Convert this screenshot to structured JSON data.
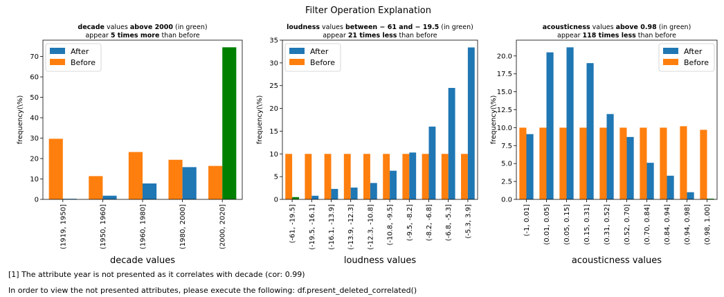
{
  "figure_title": "Filter Operation Explanation",
  "colors": {
    "after": "#1f77b4",
    "before": "#ff7f0e",
    "highlight": "#008000"
  },
  "chart_data": [
    {
      "type": "bar",
      "subtitle_parts": [
        [
          {
            "t": "decade",
            "b": true
          },
          {
            "t": " values ",
            "b": false
          },
          {
            "t": "above 2000",
            "b": true
          },
          {
            "t": " (in green)",
            "b": false
          }
        ],
        [
          {
            "t": "appear ",
            "b": false
          },
          {
            "t": "5 times more",
            "b": true
          },
          {
            "t": " than before",
            "b": false
          }
        ]
      ],
      "xlabel": "decade values",
      "ylabel": "frequency(\\%)",
      "categories": [
        "(1919, 1950]",
        "(1950, 1960]",
        "(1960, 1980]",
        "(1980, 2000]",
        "(2000, 2020]"
      ],
      "series": [
        {
          "name": "After",
          "values": [
            0.3,
            1.8,
            7.8,
            15.8,
            74.5
          ]
        },
        {
          "name": "Before",
          "values": [
            29.7,
            11.4,
            23.2,
            19.4,
            16.4
          ]
        }
      ],
      "highlight_index": 4,
      "ylim": [
        0,
        78
      ],
      "yticks": [
        "0",
        "10",
        "20",
        "30",
        "40",
        "50",
        "60",
        "70"
      ],
      "ytick_values": [
        0,
        10,
        20,
        30,
        40,
        50,
        60,
        70
      ],
      "legend": "top-left"
    },
    {
      "type": "bar",
      "subtitle_parts": [
        [
          {
            "t": "loudness",
            "b": true
          },
          {
            "t": " values ",
            "b": false
          },
          {
            "t": "between  − 61 and  − 19.5",
            "b": true
          },
          {
            "t": " (in green)",
            "b": false
          }
        ],
        [
          {
            "t": "appear ",
            "b": false
          },
          {
            "t": "21 times less",
            "b": true
          },
          {
            "t": " than before",
            "b": false
          }
        ]
      ],
      "xlabel": "loudness values",
      "ylabel": "frequency(\\%)",
      "categories": [
        "(-61, -19.5]",
        "(-19.5, -16.1]",
        "(-16.1, -13.9]",
        "(-13.9, -12.3]",
        "(-12.3, -10.8]",
        "(-10.8, -9.5]",
        "(-9.5, -8.2]",
        "(-8.2, -6.8]",
        "(-6.8, -5.3]",
        "(-5.3, 3.9]"
      ],
      "series": [
        {
          "name": "After",
          "values": [
            0.5,
            0.8,
            2.3,
            2.6,
            3.6,
            6.3,
            10.3,
            16.0,
            24.5,
            33.4
          ]
        },
        {
          "name": "Before",
          "values": [
            10.0,
            10.0,
            10.0,
            10.0,
            10.0,
            10.0,
            10.0,
            10.0,
            10.0,
            10.0
          ]
        }
      ],
      "highlight_index": 0,
      "ylim": [
        0,
        35
      ],
      "yticks": [
        "0",
        "5",
        "10",
        "15",
        "20",
        "25",
        "30",
        "35"
      ],
      "ytick_values": [
        0,
        5,
        10,
        15,
        20,
        25,
        30,
        35
      ],
      "legend": "top-left"
    },
    {
      "type": "bar",
      "subtitle_parts": [
        [
          {
            "t": "acousticness",
            "b": true
          },
          {
            "t": " values ",
            "b": false
          },
          {
            "t": "above 0.98",
            "b": true
          },
          {
            "t": " (in green)",
            "b": false
          }
        ],
        [
          {
            "t": "appear ",
            "b": false
          },
          {
            "t": "118 times less",
            "b": true
          },
          {
            "t": " than before",
            "b": false
          }
        ]
      ],
      "xlabel": "acousticness values",
      "ylabel": "frequency(\\%)",
      "categories": [
        "(-1, 0.01]",
        "(0.01, 0.05]",
        "(0.05, 0.15]",
        "(0.15, 0.31]",
        "(0.31, 0.52]",
        "(0.52, 0.70]",
        "(0.70, 0.84]",
        "(0.84, 0.94]",
        "(0.94, 0.98]",
        "(0.98, 1.00]"
      ],
      "series": [
        {
          "name": "After",
          "values": [
            9.1,
            20.5,
            21.2,
            19.0,
            11.9,
            8.7,
            5.1,
            3.3,
            1.0,
            0.1
          ]
        },
        {
          "name": "Before",
          "values": [
            10.0,
            10.0,
            10.0,
            10.0,
            10.0,
            10.0,
            10.0,
            10.0,
            10.2,
            9.7
          ]
        }
      ],
      "highlight_index": 9,
      "ylim": [
        0,
        22.2
      ],
      "yticks": [
        "0.0",
        "2.5",
        "5.0",
        "7.5",
        "10.0",
        "12.5",
        "15.0",
        "17.5",
        "20.0"
      ],
      "ytick_values": [
        0,
        2.5,
        5,
        7.5,
        10,
        12.5,
        15,
        17.5,
        20
      ],
      "legend": "top-right"
    }
  ],
  "footnotes": [
    "[1] The attribute year is not presented as it correlates with decade (cor: 0.99)",
    "In order to view the not presented attributes, please execute the following: df.present_deleted_correlated()"
  ]
}
